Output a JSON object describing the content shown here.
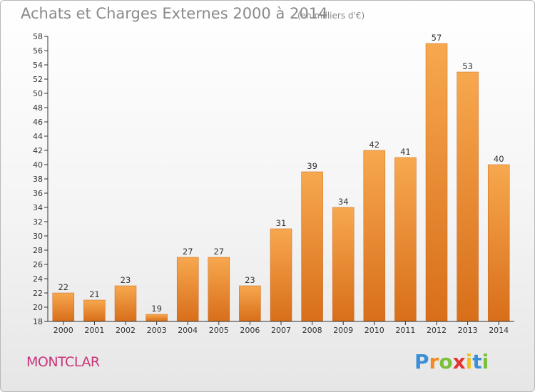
{
  "header": {
    "title": "Achats et Charges Externes 2000 à 2014",
    "subtitle": "(en milliers d'€)"
  },
  "footer": {
    "city": "MONTCLAR",
    "logo_text": "Proxiti"
  },
  "colors": {
    "bar_light": "#f7a84e",
    "bar_dark": "#d86e1a",
    "title": "#8a8a8a",
    "city": "#c8347a"
  },
  "chart_data": {
    "type": "bar",
    "categories": [
      "2000",
      "2001",
      "2002",
      "2003",
      "2004",
      "2005",
      "2006",
      "2007",
      "2008",
      "2009",
      "2010",
      "2011",
      "2012",
      "2013",
      "2014"
    ],
    "values": [
      22,
      21,
      23,
      19,
      27,
      27,
      23,
      31,
      39,
      34,
      42,
      41,
      57,
      53,
      40
    ],
    "title": "Achats et Charges Externes 2000 à 2014",
    "xlabel": "",
    "ylabel": "",
    "ylim": [
      18,
      58
    ],
    "ytick_step": 2,
    "grid": false,
    "data_labels": true
  }
}
